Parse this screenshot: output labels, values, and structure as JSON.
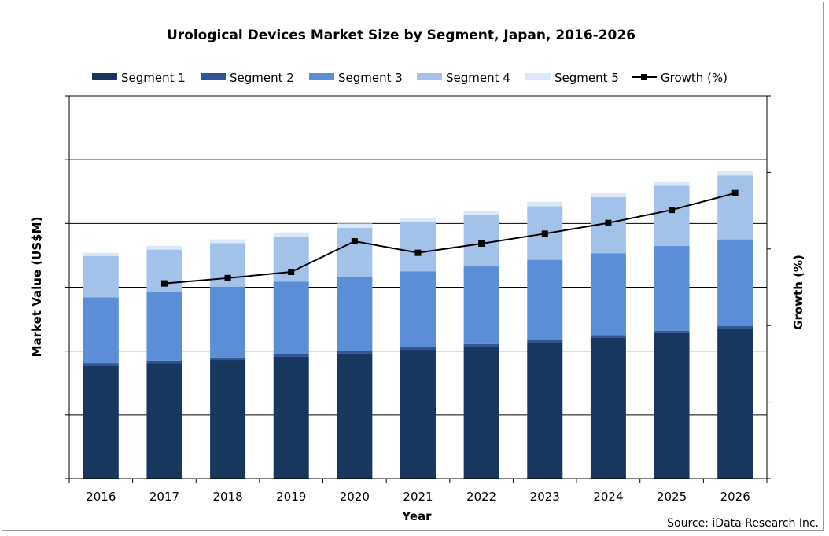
{
  "chart_data": {
    "type": "bar",
    "stacked": true,
    "title": "Urological Devices Market Size by Segment, Japan, 2016-2026",
    "xlabel": "Year",
    "ylabel": "Market Value (US$M)",
    "y2label": "Growth (%)",
    "source": "Source: iData Research Inc.",
    "categories": [
      "2016",
      "2017",
      "2018",
      "2019",
      "2020",
      "2021",
      "2022",
      "2023",
      "2024",
      "2025",
      "2026"
    ],
    "ylim": [
      0,
      6
    ],
    "y2lim": [
      0,
      5
    ],
    "y_tick_labels_shown": false,
    "grid": "horizontal",
    "legend_position": "top",
    "series": [
      {
        "name": "Segment 1",
        "color": "#17375e",
        "values": [
          1.77,
          1.81,
          1.86,
          1.91,
          1.96,
          2.02,
          2.07,
          2.14,
          2.21,
          2.28,
          2.35
        ]
      },
      {
        "name": "Segment 2",
        "color": "#2f5597",
        "values": [
          0.04,
          0.04,
          0.04,
          0.04,
          0.04,
          0.04,
          0.04,
          0.04,
          0.04,
          0.04,
          0.04
        ]
      },
      {
        "name": "Segment 3",
        "color": "#5b8ed6",
        "values": [
          1.03,
          1.08,
          1.11,
          1.14,
          1.17,
          1.19,
          1.22,
          1.25,
          1.28,
          1.33,
          1.36
        ]
      },
      {
        "name": "Segment 4",
        "color": "#a3c2ea",
        "values": [
          0.65,
          0.66,
          0.68,
          0.7,
          0.76,
          0.77,
          0.8,
          0.84,
          0.88,
          0.94,
          1.0
        ]
      },
      {
        "name": "Segment 5",
        "color": "#dce8f7",
        "values": [
          0.05,
          0.06,
          0.06,
          0.07,
          0.07,
          0.07,
          0.07,
          0.07,
          0.07,
          0.07,
          0.07
        ]
      }
    ],
    "line_series": {
      "name": "Growth (%)",
      "color": "#000000",
      "axis": "secondary",
      "values": [
        null,
        2.55,
        2.62,
        2.7,
        3.1,
        2.95,
        3.07,
        3.2,
        3.34,
        3.51,
        3.73
      ]
    }
  }
}
